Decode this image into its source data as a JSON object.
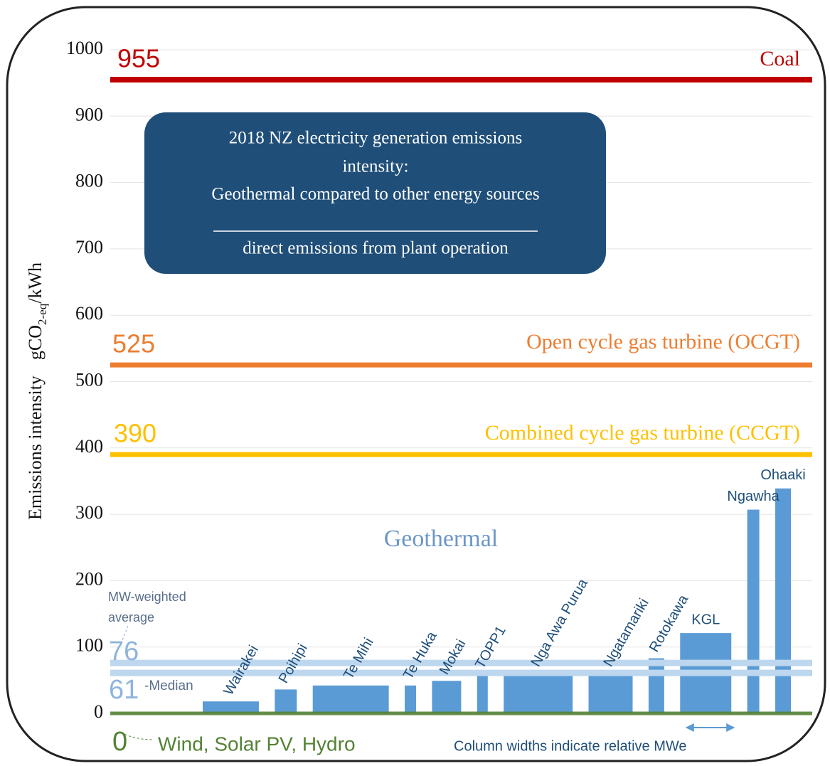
{
  "chart_data": {
    "type": "bar",
    "title": [
      "2018 NZ electricity generation emissions",
      "intensity:",
      "Geothermal compared to other energy sources"
    ],
    "subtitle": "direct emissions from plant operation",
    "ylabel": [
      "Emissions intensity",
      "gCO",
      "2-eq",
      "/kWh"
    ],
    "ylim": [
      0,
      1000
    ],
    "yticks": [
      0,
      100,
      200,
      300,
      400,
      500,
      600,
      700,
      800,
      900,
      1000
    ],
    "grid": true,
    "series_label": "Geothermal",
    "categories": [
      "Wairakei",
      "Poihipi",
      "Te Mihi",
      "Te Huka",
      "Mokai",
      "TOPP1",
      "Nga Awa Purua",
      "Ngatamariki",
      "Rotokawa",
      "KGL",
      "Ngawha",
      "Ohaaki"
    ],
    "values": [
      18,
      36,
      42,
      42,
      49,
      58,
      61,
      61,
      83,
      121,
      307,
      339
    ],
    "widths": [
      79,
      31,
      107,
      16,
      41,
      15,
      97,
      62,
      22,
      72,
      17,
      22
    ],
    "color": "#5b9bd5",
    "reference_lines": [
      {
        "name": "Coal",
        "value": 955,
        "color": "#c00000"
      },
      {
        "name": "Open cycle gas turbine (OCGT)",
        "value": 525,
        "color": "#ed7d31"
      },
      {
        "name": "Combined cycle gas turbine (CCGT)",
        "value": 390,
        "color": "#ffc000"
      },
      {
        "name": "MW-weighted average",
        "value": 76,
        "color": "#bdd7ee"
      },
      {
        "name": "-Median",
        "value": 61,
        "color": "#bdd7ee"
      },
      {
        "name": "Wind, Solar PV, Hydro",
        "value": 0,
        "color": "#548235"
      }
    ],
    "note": "Column widths indicate relative MWe"
  }
}
